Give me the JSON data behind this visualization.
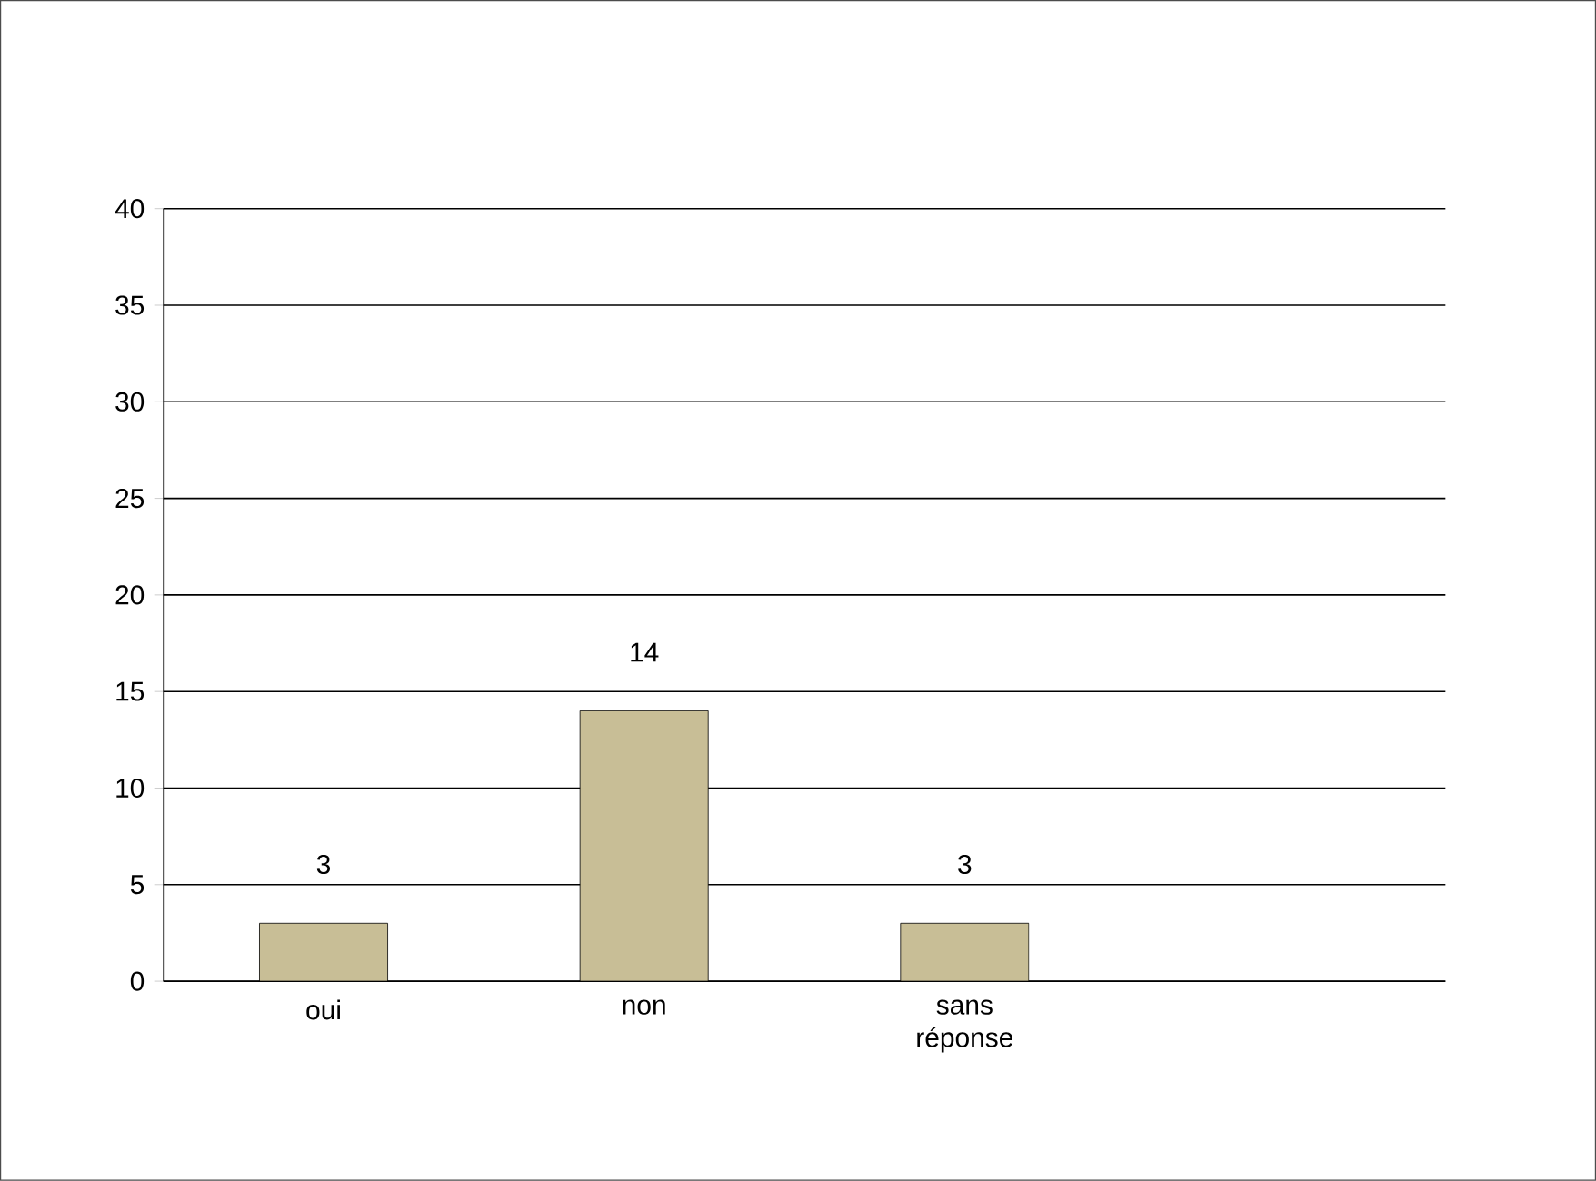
{
  "chart_data": {
    "type": "bar",
    "categories": [
      "oui",
      "non",
      "sans réponse",
      null
    ],
    "values": [
      3,
      14,
      3,
      null
    ],
    "color": "#c8be96",
    "ylim": [
      0,
      40
    ],
    "yticks": [
      0,
      5,
      10,
      15,
      20,
      25,
      30,
      35,
      40
    ],
    "grid": "y",
    "data_labels": true
  }
}
